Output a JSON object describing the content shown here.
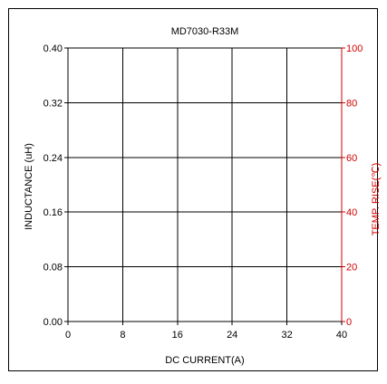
{
  "chart_data": {
    "type": "line",
    "title": "MD7030-R33M",
    "xlabel": "DC CURRENT(A)",
    "ylabel_left": "INDUCTANCE (uH)",
    "ylabel_right": "TEMP. RISE(℃)",
    "x_ticks": [
      "0",
      "8",
      "16",
      "24",
      "32",
      "40"
    ],
    "y_left_ticks": [
      "0.00",
      "0.08",
      "0.16",
      "0.24",
      "0.32",
      "0.40"
    ],
    "y_right_ticks": [
      "0",
      "20",
      "40",
      "60",
      "80",
      "100"
    ],
    "xlim": [
      0,
      40
    ],
    "ylim_left": [
      0,
      0.4
    ],
    "ylim_right": [
      0,
      100
    ],
    "grid": true,
    "series": [],
    "colors": {
      "axis": "#000000",
      "right_axis": "#d00000",
      "grid": "#000000"
    }
  }
}
